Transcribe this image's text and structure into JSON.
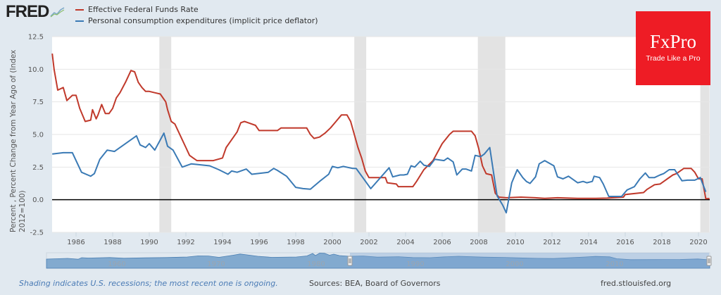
{
  "header": {
    "logo_text": "FRED",
    "logo_icon": "chart-line-icon"
  },
  "ad": {
    "brand": "FxPro",
    "tagline": "Trade Like a Pro",
    "color": "#ee1c25"
  },
  "footer": {
    "recession_note": "Shading indicates U.S. recessions; the most recent one is ongoing.",
    "sources": "Sources: BEA, Board of Governors",
    "site": "fred.stlouisfed.org"
  },
  "navigator": {
    "labels": [
      "1960",
      "1970",
      "1980",
      "1990",
      "2000",
      "2010"
    ],
    "selected_range": [
      1984.7,
      2020.6
    ]
  },
  "chart_data": {
    "type": "line",
    "title": "",
    "xlabel": "",
    "ylabel": "Percent , Percent Change from Year Ago of (Index 2012=100)",
    "ylabel_lines": [
      "Percent , Percent Change from Year Ago of (Index",
      "2012=100)"
    ],
    "xlim": [
      1984.7,
      2020.6
    ],
    "ylim": [
      -2.5,
      12.5
    ],
    "yticks": [
      "12.5",
      "10.0",
      "7.5",
      "5.0",
      "2.5",
      "0.0",
      "-2.5"
    ],
    "ytick_values": [
      12.5,
      10.0,
      7.5,
      5.0,
      2.5,
      0.0,
      -2.5
    ],
    "xticks": [
      "1986",
      "1988",
      "1990",
      "1992",
      "1994",
      "1996",
      "1998",
      "2000",
      "2002",
      "2004",
      "2006",
      "2008",
      "2010",
      "2012",
      "2014",
      "2016",
      "2018",
      "2020"
    ],
    "xtick_values": [
      1986,
      1988,
      1990,
      1992,
      1994,
      1996,
      1998,
      2000,
      2002,
      2004,
      2006,
      2008,
      2010,
      2012,
      2014,
      2016,
      2018,
      2020
    ],
    "grid": true,
    "legend_position": "top-left",
    "recessions": [
      [
        1990.55,
        1991.2
      ],
      [
        2001.2,
        2001.85
      ],
      [
        2007.95,
        2009.45
      ],
      [
        2020.1,
        2020.6
      ]
    ],
    "series": [
      {
        "name": "Effective Federal Funds Rate",
        "color": "#c0392b",
        "x": [
          1984.7,
          1984.8,
          1985.0,
          1985.3,
          1985.5,
          1985.8,
          1986.0,
          1986.2,
          1986.5,
          1986.8,
          1986.9,
          1987.1,
          1987.2,
          1987.4,
          1987.6,
          1987.8,
          1988.0,
          1988.2,
          1988.4,
          1988.7,
          1989.0,
          1989.2,
          1989.4,
          1989.6,
          1989.8,
          1990.0,
          1990.3,
          1990.6,
          1990.9,
          1991.0,
          1991.2,
          1991.4,
          1991.6,
          1991.8,
          1992.0,
          1992.2,
          1992.4,
          1992.6,
          1993.0,
          1993.5,
          1994.0,
          1994.2,
          1994.5,
          1994.8,
          1995.0,
          1995.2,
          1995.4,
          1995.8,
          1996.0,
          1996.3,
          1996.6,
          1997.0,
          1997.2,
          1997.6,
          1998.0,
          1998.6,
          1998.8,
          1999.0,
          1999.3,
          1999.6,
          1999.9,
          2000.2,
          2000.5,
          2000.8,
          2001.0,
          2001.2,
          2001.4,
          2001.6,
          2001.8,
          2002.0,
          2002.5,
          2002.9,
          2003.0,
          2003.5,
          2003.6,
          2004.4,
          2004.6,
          2005.0,
          2005.5,
          2006.0,
          2006.4,
          2006.6,
          2007.6,
          2007.8,
          2008.0,
          2008.2,
          2008.4,
          2008.7,
          2008.9,
          2009.1,
          2009.5,
          2010.3,
          2011.1,
          2011.6,
          2012.3,
          2013.4,
          2014.4,
          2015.0,
          2015.9,
          2016.0,
          2017.0,
          2017.2,
          2017.6,
          2017.9,
          2018.3,
          2018.6,
          2018.8,
          2019.2,
          2019.6,
          2019.8,
          2020.0,
          2020.2,
          2020.4,
          2020.6
        ],
        "values": [
          11.2,
          10.0,
          8.4,
          8.6,
          7.6,
          8.0,
          8.0,
          7.0,
          6.0,
          6.1,
          6.9,
          6.2,
          6.5,
          7.3,
          6.6,
          6.6,
          7.0,
          7.8,
          8.2,
          9.0,
          9.9,
          9.8,
          9.0,
          8.6,
          8.3,
          8.3,
          8.2,
          8.1,
          7.5,
          6.9,
          6.0,
          5.8,
          5.2,
          4.6,
          4.0,
          3.4,
          3.2,
          3.0,
          3.0,
          3.0,
          3.2,
          4.0,
          4.6,
          5.2,
          5.9,
          6.0,
          5.9,
          5.7,
          5.3,
          5.3,
          5.3,
          5.3,
          5.5,
          5.5,
          5.5,
          5.5,
          5.0,
          4.7,
          4.8,
          5.1,
          5.5,
          6.0,
          6.5,
          6.5,
          6.0,
          5.0,
          4.0,
          3.2,
          2.2,
          1.7,
          1.7,
          1.7,
          1.3,
          1.2,
          1.0,
          1.0,
          1.4,
          2.3,
          3.0,
          4.3,
          5.0,
          5.25,
          5.25,
          4.9,
          3.9,
          2.6,
          2.0,
          1.9,
          0.5,
          0.2,
          0.15,
          0.2,
          0.15,
          0.1,
          0.15,
          0.1,
          0.1,
          0.12,
          0.2,
          0.4,
          0.55,
          0.8,
          1.15,
          1.2,
          1.6,
          1.9,
          2.0,
          2.4,
          2.4,
          2.1,
          1.6,
          1.6,
          0.08,
          0.09
        ]
      },
      {
        "name": "Personal consumption expenditures (implicit price deflator)",
        "color": "#3a7ab5",
        "x": [
          1984.7,
          1985.3,
          1985.8,
          1986.3,
          1986.8,
          1987.0,
          1987.3,
          1987.7,
          1988.1,
          1988.5,
          1989.3,
          1989.5,
          1989.8,
          1990.0,
          1990.3,
          1990.8,
          1991.0,
          1991.3,
          1991.8,
          1992.3,
          1993.3,
          1993.8,
          1994.3,
          1994.5,
          1994.8,
          1995.3,
          1995.6,
          1996.5,
          1996.8,
          1997.0,
          1997.5,
          1998.0,
          1998.4,
          1998.8,
          1999.3,
          1999.8,
          2000.0,
          2000.3,
          2000.6,
          2001.1,
          2001.3,
          2002.1,
          2003.1,
          2003.3,
          2003.7,
          2003.9,
          2004.1,
          2004.3,
          2004.5,
          2004.8,
          2005.0,
          2005.3,
          2005.6,
          2006.1,
          2006.3,
          2006.6,
          2006.8,
          2007.1,
          2007.3,
          2007.6,
          2007.8,
          2008.1,
          2008.3,
          2008.6,
          2008.9,
          2009.0,
          2009.3,
          2009.5,
          2009.8,
          2010.1,
          2010.4,
          2010.6,
          2010.8,
          2011.1,
          2011.3,
          2011.6,
          2012.1,
          2012.3,
          2012.6,
          2012.9,
          2013.4,
          2013.7,
          2013.9,
          2014.2,
          2014.3,
          2014.6,
          2014.8,
          2015.1,
          2015.8,
          2016.1,
          2016.5,
          2016.8,
          2017.1,
          2017.3,
          2017.6,
          2017.9,
          2018.1,
          2018.4,
          2018.7,
          2019.1,
          2019.4,
          2019.8,
          2020.1,
          2020.4
        ],
        "values": [
          3.5,
          3.6,
          3.6,
          2.1,
          1.8,
          2.0,
          3.1,
          3.8,
          3.7,
          4.1,
          4.9,
          4.2,
          4.0,
          4.3,
          3.8,
          5.1,
          4.1,
          3.8,
          2.5,
          2.75,
          2.6,
          2.3,
          1.95,
          2.2,
          2.1,
          2.35,
          1.95,
          2.1,
          2.4,
          2.25,
          1.8,
          0.95,
          0.85,
          0.8,
          1.4,
          1.95,
          2.55,
          2.45,
          2.55,
          2.4,
          2.4,
          0.85,
          2.45,
          1.75,
          1.9,
          1.9,
          1.95,
          2.6,
          2.5,
          2.95,
          2.65,
          2.55,
          3.1,
          3.0,
          3.2,
          2.9,
          1.9,
          2.35,
          2.35,
          2.2,
          3.4,
          3.3,
          3.5,
          4.0,
          1.2,
          0.3,
          -0.4,
          -1.0,
          1.3,
          2.3,
          1.7,
          1.4,
          1.25,
          1.75,
          2.75,
          3.0,
          2.6,
          1.75,
          1.6,
          1.8,
          1.3,
          1.4,
          1.3,
          1.4,
          1.8,
          1.7,
          1.2,
          0.25,
          0.25,
          0.75,
          1.0,
          1.6,
          2.05,
          1.7,
          1.7,
          1.9,
          2.0,
          2.3,
          2.3,
          1.45,
          1.5,
          1.5,
          1.7,
          0.6
        ]
      }
    ]
  }
}
